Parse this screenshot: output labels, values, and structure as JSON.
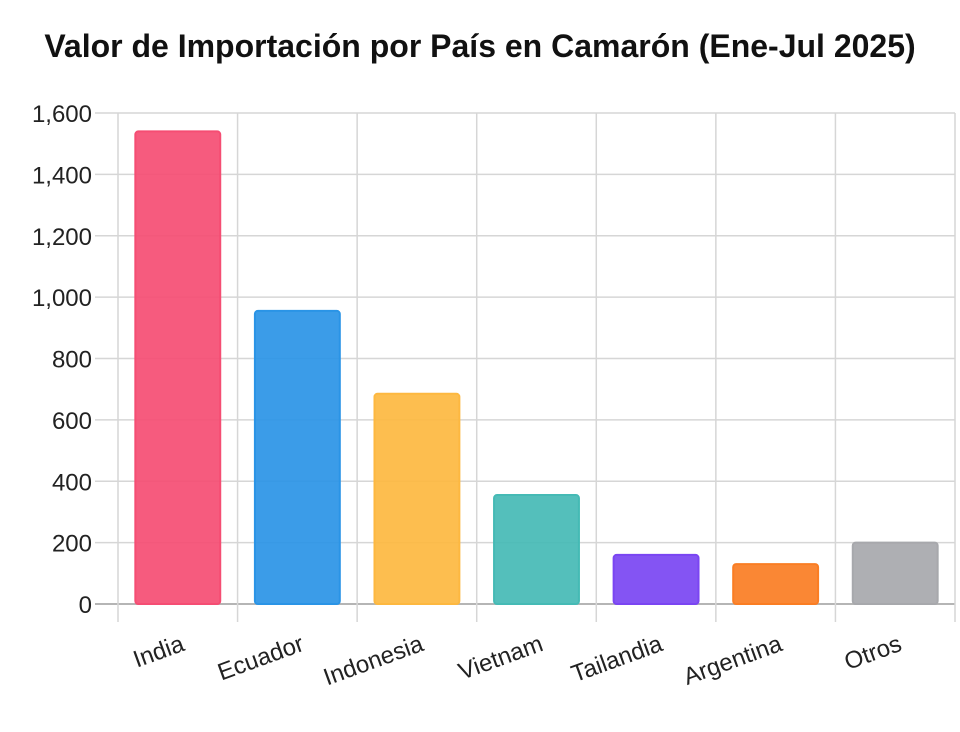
{
  "chart_data": {
    "type": "bar",
    "title": "Valor de Importación por País en Camarón (Ene-Jul 2025)",
    "xlabel": "",
    "ylabel": "",
    "categories": [
      "India",
      "Ecuador",
      "Indonesia",
      "Vietnam",
      "Tailandia",
      "Argentina",
      "Otros"
    ],
    "values": [
      1540,
      955,
      685,
      355,
      160,
      130,
      200
    ],
    "colors": [
      "#F54D73",
      "#2A94E6",
      "#FDB840",
      "#45BAB5",
      "#7A45F2",
      "#FA7D23",
      "#A7A8AC"
    ],
    "ylim": [
      0,
      1600
    ],
    "yticks": [
      0,
      200,
      400,
      600,
      800,
      1000,
      1200,
      1400,
      1600
    ],
    "ytick_labels": [
      "0",
      "200",
      "400",
      "600",
      "800",
      "1,000",
      "1,200",
      "1,400",
      "1,600"
    ],
    "grid": true,
    "legend": "none"
  }
}
